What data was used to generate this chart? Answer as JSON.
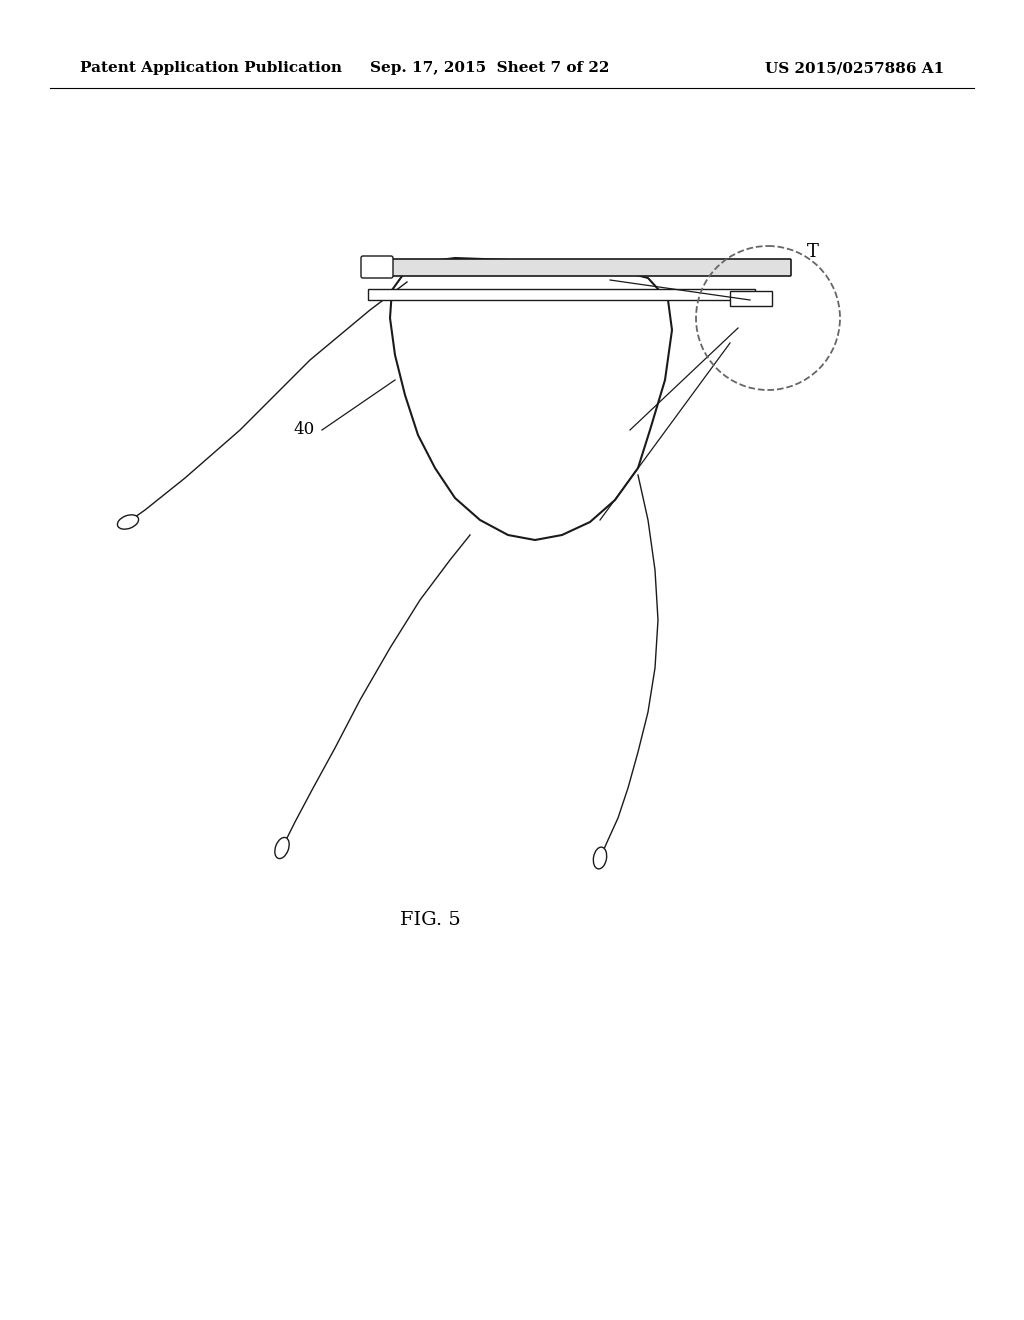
{
  "background_color": "#ffffff",
  "header_left": "Patent Application Publication",
  "header_center": "Sep. 17, 2015  Sheet 7 of 22",
  "header_right": "US 2015/0257886 A1",
  "header_fontsize": 11,
  "fig_label": "FIG. 5",
  "fig_label_fontsize": 14,
  "line_color": "#1a1a1a",
  "dashed_color": "#555555"
}
